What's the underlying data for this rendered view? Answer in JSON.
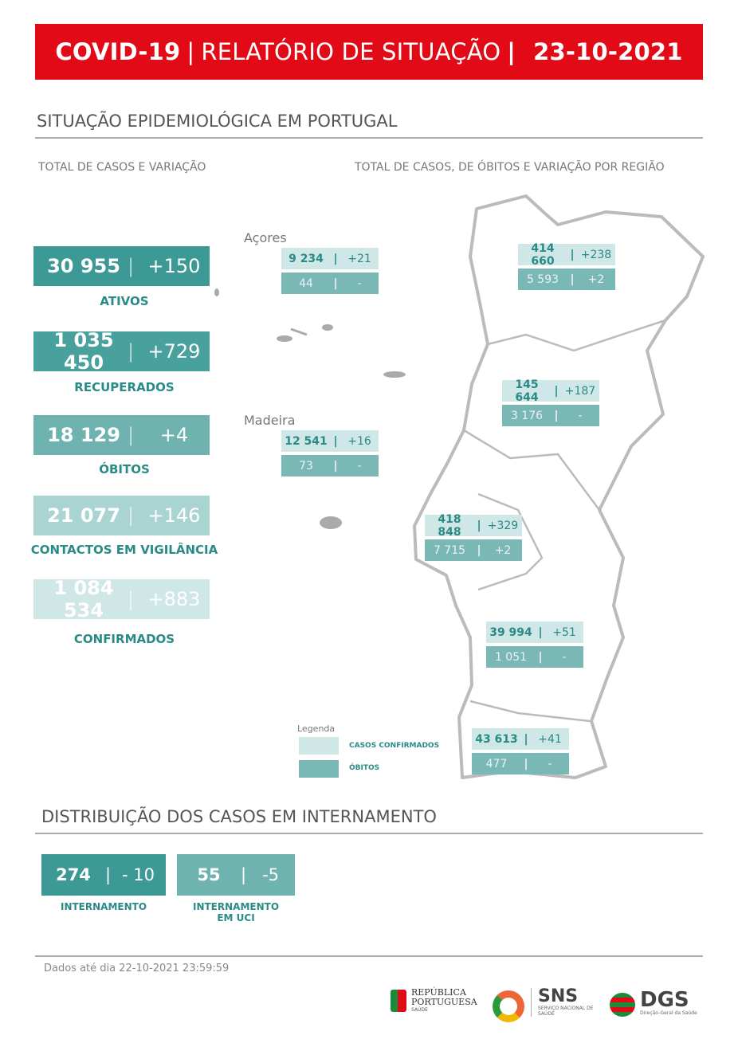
{
  "header": {
    "title_bold": "COVID-19",
    "title_mid": "RELATÓRIO DE SITUAÇÃO",
    "date": "23-10-2021",
    "color": "#e30a17"
  },
  "section1": {
    "title": "SITUAÇÃO EPIDEMIOLÓGICA EM PORTUGAL",
    "left_sub": "TOTAL DE CASOS E VARIAÇÃO",
    "right_sub": "TOTAL DE CASOS, DE ÓBITOS E VARIAÇÃO POR REGIÃO"
  },
  "stats": [
    {
      "value": "30 955",
      "change": "+150",
      "label": "ATIVOS",
      "color": "#3d9995"
    },
    {
      "value": "1 035 450",
      "change": "+729",
      "label": "RECUPERADOS",
      "color": "#48a19d"
    },
    {
      "value": "18 129",
      "change": "+4",
      "label": "ÓBITOS",
      "color": "#6eb3b0"
    },
    {
      "value": "21 077",
      "change": "+146",
      "label": "CONTACTOS EM VIGILÂNCIA",
      "color": "#a9d4d2"
    },
    {
      "value": "1 084 534",
      "change": "+883",
      "label": "CONFIRMADOS",
      "color": "#cfe7e6"
    }
  ],
  "regions": [
    {
      "name": "Açores",
      "cases": "9 234",
      "cases_change": "+21",
      "deaths": "44",
      "deaths_change": "-"
    },
    {
      "name": "",
      "cases": "414 660",
      "cases_change": "+238",
      "deaths": "5 593",
      "deaths_change": "+2"
    },
    {
      "name": "",
      "cases": "145 644",
      "cases_change": "+187",
      "deaths": "3 176",
      "deaths_change": "-"
    },
    {
      "name": "Madeira",
      "cases": "12 541",
      "cases_change": "+16",
      "deaths": "73",
      "deaths_change": "-"
    },
    {
      "name": "",
      "cases": "418 848",
      "cases_change": "+329",
      "deaths": "7 715",
      "deaths_change": "+2"
    },
    {
      "name": "",
      "cases": "39 994",
      "cases_change": "+51",
      "deaths": "1 051",
      "deaths_change": "-"
    },
    {
      "name": "",
      "cases": "43 613",
      "cases_change": "+41",
      "deaths": "477",
      "deaths_change": "-"
    }
  ],
  "legend": {
    "title": "Legenda",
    "confirmed": "CASOS CONFIRMADOS",
    "deaths": "ÓBITOS"
  },
  "section2": {
    "title": "DISTRIBUIÇÃO DOS CASOS EM INTERNAMENTO"
  },
  "hospital": [
    {
      "value": "274",
      "change": "- 10",
      "label1": "INTERNAMENTO",
      "label2": ""
    },
    {
      "value": "55",
      "change": "-5",
      "label1": "INTERNAMENTO",
      "label2": "EM UCI"
    }
  ],
  "footer": {
    "note": "Dados até dia 22-10-2021 23:59:59",
    "logo1": "REPÚBLICA PORTUGUESA",
    "logo1_sub": "SAÚDE",
    "logo2": "SNS",
    "logo2_sub": "SERVIÇO NACIONAL DE SAÚDE",
    "logo3": "DGS",
    "logo3_sub": "Direção-Geral da Saúde"
  }
}
